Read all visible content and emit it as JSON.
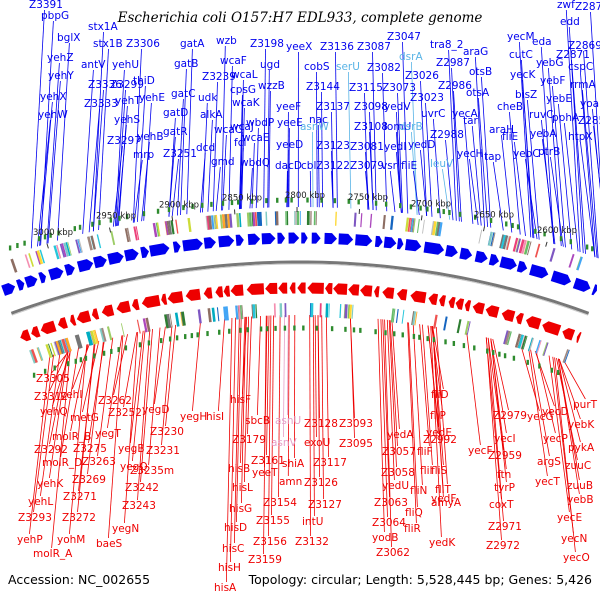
{
  "title": "Escherichia coli O157:H7 EDL933, complete genome",
  "footer": {
    "accession": "Accession: NC_002655",
    "summary": "Topology: circular; Length: 5,528,445 bp; Genes: 5,426"
  },
  "colors": {
    "forward_strand": "#0000ee",
    "reverse_strand": "#ee0000",
    "rna_label": "#5ab4e6",
    "rna_label_reverse": "#e6a0c8",
    "backbone": "#777777"
  },
  "kbp_ticks": [
    "3000 kbp",
    "2950 kbp",
    "2900 kbp",
    "2850 kbp",
    "2800 kbp",
    "2750 kbp",
    "2700 kbp",
    "2650 kbp",
    "2600 kbp"
  ],
  "top_labels": [
    [
      "Z3391",
      29,
      8
    ],
    [
      "pbpG",
      41,
      19
    ],
    [
      "stx1A",
      88,
      30
    ],
    [
      "bglX",
      57,
      41
    ],
    [
      "stx1B",
      93,
      47
    ],
    [
      "Z3306",
      126,
      47
    ],
    [
      "yehZ",
      47,
      61
    ],
    [
      "antV",
      81,
      68
    ],
    [
      "yehU",
      112,
      68
    ],
    [
      "yehY",
      48,
      79
    ],
    [
      "Z3336",
      88,
      88
    ],
    [
      "Z3299",
      110,
      88
    ],
    [
      "yehX",
      40,
      100
    ],
    [
      "Z3333",
      84,
      107
    ],
    [
      "yehT",
      115,
      104
    ],
    [
      "yehW",
      38,
      118
    ],
    [
      "yehS",
      114,
      123
    ],
    [
      "Z3297",
      107,
      144
    ],
    [
      "gatA",
      180,
      47
    ],
    [
      "gatB",
      174,
      67
    ],
    [
      "thiD",
      133,
      84
    ],
    [
      "gatC",
      171,
      97
    ],
    [
      "yehE",
      139,
      101
    ],
    [
      "gatD",
      163,
      116
    ],
    [
      "yehB",
      137,
      140
    ],
    [
      "gatR",
      163,
      135
    ],
    [
      "Z3251",
      163,
      157
    ],
    [
      "mrp",
      133,
      158
    ],
    [
      "wzb",
      216,
      44
    ],
    [
      "Z3198",
      250,
      47
    ],
    [
      "yeeX",
      286,
      50
    ],
    [
      "Z3136",
      320,
      50
    ],
    [
      "Z3087",
      357,
      50
    ],
    [
      "Z3047",
      387,
      40
    ],
    [
      "tra8_2",
      430,
      48
    ],
    [
      "wcaF",
      220,
      64
    ],
    [
      "ugd",
      260,
      68
    ],
    [
      "cobS",
      304,
      70
    ],
    [
      "serU",
      336,
      70
    ],
    [
      "Z3082",
      367,
      71
    ],
    [
      "dsrA",
      399,
      60
    ],
    [
      "Z3239",
      202,
      80
    ],
    [
      "wcaL",
      231,
      78
    ],
    [
      "Z3144",
      306,
      90
    ],
    [
      "Z3115",
      349,
      91
    ],
    [
      "Z3073",
      382,
      91
    ],
    [
      "udk",
      198,
      101
    ],
    [
      "cpsG",
      230,
      93
    ],
    [
      "wzzB",
      258,
      89
    ],
    [
      "wcaK",
      232,
      106
    ],
    [
      "yeeF",
      276,
      110
    ],
    [
      "nac",
      309,
      123
    ],
    [
      "Z3137",
      316,
      110
    ],
    [
      "Z3098",
      354,
      110
    ],
    [
      "yedV",
      384,
      110
    ],
    [
      "alkA",
      200,
      118
    ],
    [
      "wbdP",
      246,
      126
    ],
    [
      "yeeE",
      277,
      126
    ],
    [
      "asnW",
      300,
      130
    ],
    [
      "Z3108",
      354,
      130
    ],
    [
      "lomU",
      384,
      130
    ],
    [
      "dsrB",
      399,
      130
    ],
    [
      "Z3026",
      405,
      79
    ],
    [
      "Z3023",
      410,
      101
    ],
    [
      "Z2987",
      436,
      66
    ],
    [
      "araG",
      463,
      55
    ],
    [
      "Z2986",
      438,
      89
    ],
    [
      "otsB",
      469,
      75
    ],
    [
      "Z2988",
      430,
      138
    ],
    [
      "uvrC",
      421,
      117
    ],
    [
      "yecA",
      452,
      117
    ],
    [
      "tar",
      463,
      124
    ],
    [
      "otsA",
      466,
      96
    ],
    [
      "wcaJ",
      230,
      130
    ],
    [
      "wcaC",
      214,
      133
    ],
    [
      "wcaE",
      242,
      141
    ],
    [
      "fcl",
      234,
      146
    ],
    [
      "dcd",
      196,
      151
    ],
    [
      "gmd",
      211,
      165
    ],
    [
      "wbdQ",
      240,
      166
    ],
    [
      "yeeD",
      276,
      148
    ],
    [
      "dacD",
      275,
      169
    ],
    [
      "cbl",
      301,
      169
    ],
    [
      "Z3123",
      316,
      149
    ],
    [
      "Z3081",
      350,
      150
    ],
    [
      "yedI",
      384,
      150
    ],
    [
      "yedD",
      408,
      148
    ],
    [
      "Z3122",
      316,
      169
    ],
    [
      "Z3079",
      350,
      169
    ],
    [
      "vsr",
      381,
      169
    ],
    [
      "fliE",
      401,
      169
    ],
    [
      "leuV",
      430,
      167
    ],
    [
      "zwf",
      557,
      8
    ],
    [
      "Z2872",
      575,
      10
    ],
    [
      "edd",
      560,
      25
    ],
    [
      "yecM",
      507,
      40
    ],
    [
      "eda",
      532,
      45
    ],
    [
      "Z2869",
      568,
      49
    ],
    [
      "Z2871",
      556,
      58
    ],
    [
      "cutC",
      509,
      58
    ],
    [
      "yebG",
      536,
      66
    ],
    [
      "cspC",
      568,
      70
    ],
    [
      "yecK",
      510,
      78
    ],
    [
      "rrmA",
      570,
      88
    ],
    [
      "yebF",
      540,
      84
    ],
    [
      "bisZ",
      515,
      98
    ],
    [
      "yebE",
      546,
      102
    ],
    [
      "yoaE",
      580,
      107
    ],
    [
      "ruvC",
      529,
      118
    ],
    [
      "pphA",
      552,
      121
    ],
    [
      "cheB",
      497,
      110
    ],
    [
      "araH",
      489,
      133
    ],
    [
      "fliE",
      502,
      140
    ],
    [
      "yebA",
      530,
      137
    ],
    [
      "Z2854",
      578,
      124
    ],
    [
      "htpX",
      568,
      140
    ],
    [
      "yecH",
      457,
      157
    ],
    [
      "tap",
      484,
      160
    ],
    [
      "yebC",
      513,
      157
    ],
    [
      "ptrB",
      538,
      155
    ]
  ],
  "bottom_labels": [
    [
      "Z3305",
      36,
      382
    ],
    [
      "Z3312",
      34,
      400
    ],
    [
      "yehI",
      60,
      398
    ],
    [
      "yehQ",
      40,
      415
    ],
    [
      "metG",
      70,
      421
    ],
    [
      "Z3262",
      98,
      404
    ],
    [
      "Z3252",
      108,
      416
    ],
    [
      "yegD",
      142,
      413
    ],
    [
      "yegT",
      95,
      437
    ],
    [
      "molR_B",
      52,
      440
    ],
    [
      "Z3275",
      73,
      452
    ],
    [
      "Z3230",
      150,
      435
    ],
    [
      "Z3292",
      34,
      453
    ],
    [
      "yegB",
      118,
      452
    ],
    [
      "Z3231",
      146,
      454
    ],
    [
      "molR_D",
      42,
      466
    ],
    [
      "Z3263",
      82,
      465
    ],
    [
      "yegQ",
      120,
      470
    ],
    [
      "Z3235m",
      130,
      474
    ],
    [
      "Z3269",
      72,
      483
    ],
    [
      "yehK",
      37,
      487
    ],
    [
      "Z3242",
      125,
      491
    ],
    [
      "Z3271",
      63,
      500
    ],
    [
      "yehL",
      28,
      505
    ],
    [
      "Z3243",
      122,
      509
    ],
    [
      "Z3293",
      18,
      521
    ],
    [
      "Z3272",
      62,
      521
    ],
    [
      "yegN",
      112,
      532
    ],
    [
      "yehP",
      17,
      543
    ],
    [
      "baeS",
      96,
      547
    ],
    [
      "yohM",
      57,
      543
    ],
    [
      "molR_A",
      33,
      557
    ],
    [
      "yegH",
      180,
      420
    ],
    [
      "hisI",
      206,
      420
    ],
    [
      "hisF",
      230,
      403
    ],
    [
      "sbcB",
      245,
      424
    ],
    [
      "asnU",
      275,
      424
    ],
    [
      "Z3179",
      232,
      443
    ],
    [
      "asnV",
      271,
      446
    ],
    [
      "Z3128",
      304,
      427
    ],
    [
      "Z3093",
      339,
      427
    ],
    [
      "Z3095",
      339,
      447
    ],
    [
      "hisB",
      228,
      472
    ],
    [
      "yeeT",
      252,
      476
    ],
    [
      "Z3161",
      251,
      464
    ],
    [
      "shiA",
      282,
      467
    ],
    [
      "exoU",
      304,
      446
    ],
    [
      "amn",
      279,
      485
    ],
    [
      "Z3117",
      313,
      466
    ],
    [
      "Z3126",
      304,
      486
    ],
    [
      "hisL",
      232,
      491
    ],
    [
      "Z3154",
      263,
      506
    ],
    [
      "Z3127",
      308,
      508
    ],
    [
      "hisG",
      229,
      512
    ],
    [
      "Z3155",
      256,
      524
    ],
    [
      "intU",
      302,
      525
    ],
    [
      "hisD",
      224,
      531
    ],
    [
      "Z3156",
      253,
      545
    ],
    [
      "Z3132",
      295,
      545
    ],
    [
      "hisC",
      222,
      552
    ],
    [
      "Z3159",
      248,
      563
    ],
    [
      "hisH",
      218,
      571
    ],
    [
      "hisA",
      214,
      591
    ],
    [
      "yedA",
      387,
      438
    ],
    [
      "fliD",
      431,
      398
    ],
    [
      "fliP",
      430,
      419
    ],
    [
      "yedE",
      426,
      436
    ],
    [
      "Z2992",
      423,
      443
    ],
    [
      "Z2979",
      493,
      419
    ],
    [
      "yecG",
      527,
      420
    ],
    [
      "fliF",
      417,
      455
    ],
    [
      "Z3057",
      382,
      455
    ],
    [
      "yecF",
      468,
      454
    ],
    [
      "yecI",
      494,
      442
    ],
    [
      "Z2959",
      488,
      459
    ],
    [
      "fliI",
      420,
      474
    ],
    [
      "fliS",
      431,
      474
    ],
    [
      "Z3058",
      381,
      476
    ],
    [
      "yedU",
      382,
      489
    ],
    [
      "ftn",
      497,
      478
    ],
    [
      "tyrP",
      494,
      491
    ],
    [
      "fliN",
      410,
      494
    ],
    [
      "fliT",
      435,
      493
    ],
    [
      "yedF",
      431,
      502
    ],
    [
      "amyA",
      431,
      506
    ],
    [
      "fliQ",
      405,
      516
    ],
    [
      "Z3063",
      374,
      506
    ],
    [
      "coxT",
      489,
      508
    ],
    [
      "Z3064",
      372,
      526
    ],
    [
      "fliR",
      404,
      532
    ],
    [
      "yodB",
      372,
      541
    ],
    [
      "yedK",
      429,
      546
    ],
    [
      "Z2971",
      488,
      530
    ],
    [
      "Z2972",
      486,
      549
    ],
    [
      "Z3062",
      376,
      556
    ],
    [
      "yecD",
      542,
      415
    ],
    [
      "purT",
      573,
      408
    ],
    [
      "yecP",
      543,
      442
    ],
    [
      "yebK",
      568,
      428
    ],
    [
      "pykA",
      568,
      451
    ],
    [
      "argS",
      537,
      465
    ],
    [
      "zuuC",
      565,
      469
    ],
    [
      "yecT",
      535,
      485
    ],
    [
      "zuuB",
      567,
      489
    ],
    [
      "yebB",
      567,
      503
    ],
    [
      "yecE",
      557,
      521
    ],
    [
      "yecN",
      561,
      542
    ],
    [
      "yecO",
      563,
      561
    ]
  ]
}
